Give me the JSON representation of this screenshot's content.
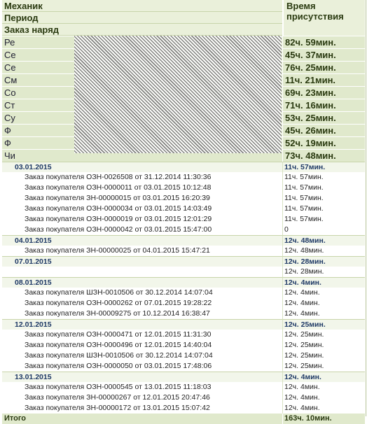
{
  "header": {
    "mechanic": "Механик",
    "period": "Период",
    "order": "Заказ наряд",
    "time_presence": "Время присутствия"
  },
  "mechanics": [
    {
      "name": "Ре",
      "time": "82ч. 59мин."
    },
    {
      "name": "Се",
      "time": "45ч. 37мин."
    },
    {
      "name": "Се",
      "time": "76ч. 25мин."
    },
    {
      "name": "См",
      "time": "11ч. 21мин."
    },
    {
      "name": "Со",
      "time": "69ч. 23мин."
    },
    {
      "name": "Ст",
      "time": "71ч. 16мин."
    },
    {
      "name": "Су",
      "time": "53ч. 25мин."
    },
    {
      "name": "Ф",
      "time": "45ч. 26мин."
    },
    {
      "name": "Ф",
      "time": "52ч. 19мин."
    },
    {
      "name": "Чи",
      "time": "73ч. 48мин."
    }
  ],
  "rows": [
    {
      "type": "date",
      "text": "03.01.2015",
      "time": "11ч. 57мин."
    },
    {
      "type": "order",
      "text": "Заказ покупателя ОЗН-0026508 от 31.12.2014 11:30:36",
      "time": "11ч. 57мин."
    },
    {
      "type": "order",
      "text": "Заказ покупателя ОЗН-0000011 от 03.01.2015 10:12:48",
      "time": "11ч. 57мин."
    },
    {
      "type": "order",
      "text": "Заказ покупателя ЗН-00000015 от 03.01.2015 16:20:39",
      "time": "11ч. 57мин."
    },
    {
      "type": "order",
      "text": "Заказ покупателя ОЗН-0000034 от 03.01.2015 14:03:49",
      "time": "11ч. 57мин."
    },
    {
      "type": "order",
      "text": "Заказ покупателя ОЗН-0000019 от 03.01.2015 12:01:29",
      "time": "11ч. 57мин."
    },
    {
      "type": "order",
      "text": "Заказ покупателя ОЗН-0000042 от 03.01.2015 15:47:00",
      "time": "0"
    },
    {
      "type": "date",
      "text": "04.01.2015",
      "time": "12ч. 48мин."
    },
    {
      "type": "order",
      "text": "Заказ покупателя ЗН-00000025 от 04.01.2015 15:47:21",
      "time": "12ч. 48мин."
    },
    {
      "type": "date",
      "text": "07.01.2015",
      "time": "12ч. 28мин."
    },
    {
      "type": "blank",
      "text": "",
      "time": "12ч. 28мин."
    },
    {
      "type": "date",
      "text": "08.01.2015",
      "time": "12ч. 4мин."
    },
    {
      "type": "order",
      "text": "Заказ покупателя ШЗН-0010506 от 30.12.2014 14:07:04",
      "time": "12ч. 4мин."
    },
    {
      "type": "order",
      "text": "Заказ покупателя ОЗН-0000262 от 07.01.2015 19:28:22",
      "time": "12ч. 4мин."
    },
    {
      "type": "order",
      "text": "Заказ покупателя ЗН-00009275 от 10.12.2014 16:38:47",
      "time": "12ч. 4мин."
    },
    {
      "type": "date",
      "text": "12.01.2015",
      "time": "12ч. 25мин."
    },
    {
      "type": "order",
      "text": "Заказ покупателя ОЗН-0000471 от 12.01.2015 11:31:30",
      "time": "12ч. 25мин."
    },
    {
      "type": "order",
      "text": "Заказ покупателя ОЗН-0000496 от 12.01.2015 14:40:04",
      "time": "12ч. 25мин."
    },
    {
      "type": "order",
      "text": "Заказ покупателя ШЗН-0010506 от 30.12.2014 14:07:04",
      "time": "12ч. 25мин."
    },
    {
      "type": "order",
      "text": "Заказ покупателя ОЗН-0000050 от 03.01.2015 17:48:06",
      "time": "12ч. 25мин."
    },
    {
      "type": "date",
      "text": "13.01.2015",
      "time": "12ч. 4мин."
    },
    {
      "type": "order",
      "text": "Заказ покупателя ОЗН-0000545 от 13.01.2015 11:18:03",
      "time": "12ч. 4мин."
    },
    {
      "type": "order",
      "text": "Заказ покупателя ЗН-00000267 от 12.01.2015 20:47:46",
      "time": "12ч. 4мин."
    },
    {
      "type": "order",
      "text": "Заказ покупателя ЗН-00000172 от 13.01.2015 15:07:42",
      "time": "12ч. 4мин."
    }
  ],
  "total": {
    "label": "Итого",
    "time": "163ч. 10мин."
  }
}
